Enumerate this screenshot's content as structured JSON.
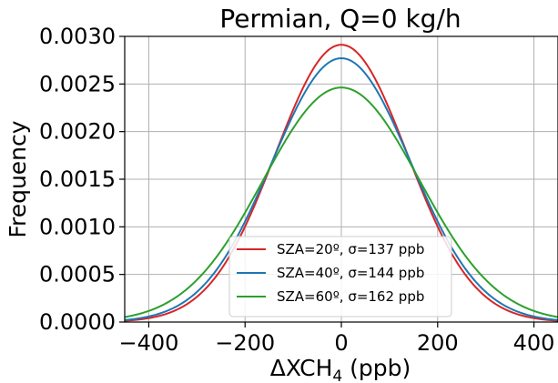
{
  "chart_data": {
    "type": "line",
    "title": "Permian, Q=0 kg/h",
    "xlabel": "ΔXCH",
    "xlabel_sub": "4",
    "xlabel_unit": " (ppb)",
    "ylabel": "Frequency",
    "xlim": [
      -450,
      450
    ],
    "ylim": [
      0,
      0.003
    ],
    "xticks": [
      -400,
      -200,
      0,
      200,
      400
    ],
    "xtick_labels": [
      "−400",
      "−200",
      "0",
      "200",
      "400"
    ],
    "yticks": [
      0,
      0.0005,
      0.001,
      0.0015,
      0.002,
      0.0025,
      0.003
    ],
    "ytick_labels": [
      "0.0000",
      "0.0005",
      "0.0010",
      "0.0015",
      "0.0020",
      "0.0025",
      "0.0030"
    ],
    "grid": true,
    "legend_position": "bottom-center",
    "series": [
      {
        "name": "SZA=20º, σ=137 ppb",
        "color": "#d62728",
        "mean": 0,
        "sigma": 137,
        "x": [
          -450,
          -400,
          -350,
          -300,
          -250,
          -200,
          -150,
          -100,
          -50,
          0,
          50,
          100,
          150,
          200,
          250,
          300,
          350,
          400,
          450
        ],
        "y": [
          1.31e-05,
          4.12e-05,
          0.000112,
          0.000264,
          0.000546,
          0.000986,
          0.001555,
          0.002143,
          0.002581,
          0.002912,
          0.002581,
          0.002143,
          0.001555,
          0.000986,
          0.000546,
          0.000264,
          0.000112,
          4.12e-05,
          1.31e-05
        ]
      },
      {
        "name": "SZA=40º, σ=144 ppb",
        "color": "#1f77b4",
        "mean": 0,
        "sigma": 144,
        "x": [
          -450,
          -400,
          -350,
          -300,
          -250,
          -200,
          -150,
          -100,
          -50,
          0,
          50,
          100,
          150,
          200,
          250,
          300,
          350,
          400,
          450
        ],
        "y": [
          2.08e-05,
          6.01e-05,
          0.000151,
          0.000317,
          0.000612,
          0.001054,
          0.001602,
          0.002143,
          0.002604,
          0.00277,
          0.002604,
          0.002143,
          0.001602,
          0.001054,
          0.000612,
          0.000317,
          0.000151,
          6.01e-05,
          2.08e-05
        ]
      },
      {
        "name": "SZA=60º, σ=162 ppb",
        "color": "#2ca02c",
        "mean": 0,
        "sigma": 162,
        "x": [
          -450,
          -400,
          -350,
          -300,
          -250,
          -200,
          -150,
          -100,
          -50,
          0,
          50,
          100,
          150,
          200,
          250,
          300,
          350,
          400,
          450
        ],
        "y": [
          5.13e-05,
          0.000116,
          0.000239,
          0.000444,
          0.000749,
          0.001149,
          0.001606,
          0.002044,
          0.002367,
          0.002463,
          0.002367,
          0.002044,
          0.001606,
          0.001149,
          0.000749,
          0.000444,
          0.000239,
          0.000116,
          5.13e-05
        ]
      }
    ]
  }
}
